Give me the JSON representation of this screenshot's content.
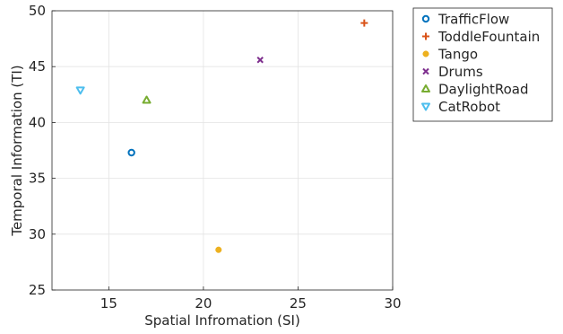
{
  "chart_data": {
    "type": "scatter",
    "xlabel": "Spatial Infromation (SI)",
    "ylabel": "Temporal Information (TI)",
    "xlim": [
      12,
      30
    ],
    "ylim": [
      25,
      50
    ],
    "xticks": [
      15,
      20,
      25,
      30
    ],
    "yticks": [
      25,
      30,
      35,
      40,
      45,
      50
    ],
    "grid": true,
    "legend_position": "outside-right",
    "series": [
      {
        "name": "TrafficFlow",
        "marker": "circle",
        "color": "#0072BD",
        "points": [
          {
            "x": 16.2,
            "y": 37.3
          }
        ]
      },
      {
        "name": "ToddleFountain",
        "marker": "plus",
        "color": "#D95319",
        "points": [
          {
            "x": 28.5,
            "y": 48.9
          }
        ]
      },
      {
        "name": "Tango",
        "marker": "filled-circle",
        "color": "#EDB120",
        "points": [
          {
            "x": 20.8,
            "y": 28.6
          }
        ]
      },
      {
        "name": "Drums",
        "marker": "x",
        "color": "#7E2F8E",
        "points": [
          {
            "x": 23.0,
            "y": 45.6
          }
        ]
      },
      {
        "name": "DaylightRoad",
        "marker": "triangle-up",
        "color": "#77AC30",
        "points": [
          {
            "x": 17.0,
            "y": 42.0
          }
        ]
      },
      {
        "name": "CatRobot",
        "marker": "triangle-down",
        "color": "#4DBEEE",
        "points": [
          {
            "x": 13.5,
            "y": 42.9
          }
        ]
      }
    ]
  }
}
